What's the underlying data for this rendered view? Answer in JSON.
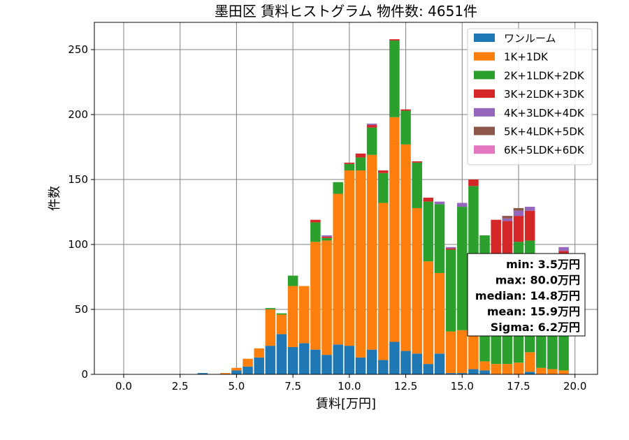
{
  "chart_data": {
    "type": "bar",
    "stacked": true,
    "title": "墨田区 賃料ヒストグラム 物件数: 4651件",
    "xlabel": "賃料[万円]",
    "ylabel": "件数",
    "xlim": [
      -1.3,
      21.0
    ],
    "ylim": [
      0,
      271
    ],
    "xticks": [
      0,
      2.5,
      5,
      7.5,
      10,
      12.5,
      15,
      17.5,
      20
    ],
    "xtick_labels": [
      "0.0",
      "2.5",
      "5.0",
      "7.5",
      "10.0",
      "12.5",
      "15.0",
      "17.5",
      "20.0"
    ],
    "yticks": [
      0,
      50,
      100,
      150,
      200,
      250
    ],
    "ytick_labels": [
      "0",
      "50",
      "100",
      "150",
      "200",
      "250"
    ],
    "grid": true,
    "legend_position": "top-right",
    "bin_width": 0.5,
    "x": [
      3.5,
      4.0,
      4.5,
      5.0,
      5.5,
      6.0,
      6.5,
      7.0,
      7.5,
      8.0,
      8.5,
      9.0,
      9.5,
      10.0,
      10.5,
      11.0,
      11.5,
      12.0,
      12.5,
      13.0,
      13.5,
      14.0,
      14.5,
      15.0,
      15.5,
      16.0,
      16.5,
      17.0,
      17.5,
      18.0,
      18.5,
      19.0,
      19.5
    ],
    "series": [
      {
        "name": "ワンルーム",
        "color": "#1f77b4",
        "values": [
          1,
          0,
          0,
          3,
          6,
          13,
          22,
          31,
          21,
          24,
          19,
          15,
          23,
          22,
          13,
          19,
          11,
          25,
          18,
          16,
          8,
          16,
          1,
          1,
          4,
          3,
          0,
          0,
          0,
          2,
          0,
          0,
          0
        ]
      },
      {
        "name": "1K+1DK",
        "color": "#ff7f0e",
        "values": [
          0,
          0,
          1,
          2,
          6,
          7,
          28,
          15,
          47,
          44,
          83,
          88,
          116,
          135,
          144,
          150,
          121,
          173,
          159,
          112,
          79,
          62,
          32,
          33,
          28,
          7,
          8,
          8,
          9,
          15,
          5,
          4,
          3
        ]
      },
      {
        "name": "2K+1LDK+2DK",
        "color": "#2ca02c",
        "values": [
          0,
          0,
          0,
          0,
          0,
          0,
          1,
          1,
          8,
          0,
          15,
          2,
          9,
          5,
          10,
          21,
          23,
          59,
          26,
          35,
          46,
          53,
          63,
          95,
          113,
          97,
          66,
          77,
          93,
          86,
          75,
          72,
          88
        ]
      },
      {
        "name": "3K+2LDK+3DK",
        "color": "#d62728",
        "values": [
          0,
          0,
          0,
          0,
          0,
          0,
          0,
          0,
          0,
          0,
          2,
          1,
          0,
          1,
          3,
          2,
          2,
          1,
          1,
          1,
          3,
          0,
          1,
          0,
          5,
          0,
          45,
          33,
          20,
          23,
          0,
          0,
          4
        ]
      },
      {
        "name": "4K+3LDK+4DK",
        "color": "#9467bd",
        "values": [
          0,
          0,
          0,
          0,
          0,
          0,
          0,
          0,
          0,
          0,
          0,
          1,
          0,
          0,
          0,
          1,
          0,
          0,
          0,
          0,
          0,
          2,
          1,
          3,
          0,
          0,
          0,
          2,
          4,
          3,
          0,
          0,
          3
        ]
      },
      {
        "name": "5K+4LDK+5DK",
        "color": "#8c564b",
        "values": [
          0,
          0,
          0,
          0,
          0,
          0,
          0,
          0,
          0,
          0,
          0,
          0,
          0,
          0,
          0,
          0,
          0,
          0,
          0,
          0,
          0,
          0,
          0,
          0,
          0,
          0,
          0,
          2,
          2,
          0,
          0,
          0,
          0
        ]
      },
      {
        "name": "6K+5LDK+6DK",
        "color": "#e377c2",
        "values": [
          0,
          0,
          0,
          0,
          0,
          0,
          0,
          0,
          0,
          0,
          0,
          0,
          0,
          0,
          0,
          0,
          0,
          0,
          0,
          0,
          0,
          0,
          0,
          0,
          0,
          0,
          0,
          0,
          0,
          0,
          0,
          0,
          0
        ]
      }
    ],
    "stats": [
      "min: 3.5万円",
      "max: 80.0万円",
      "median: 14.8万円",
      "mean: 15.9万円",
      "Sigma: 6.2万円"
    ]
  }
}
